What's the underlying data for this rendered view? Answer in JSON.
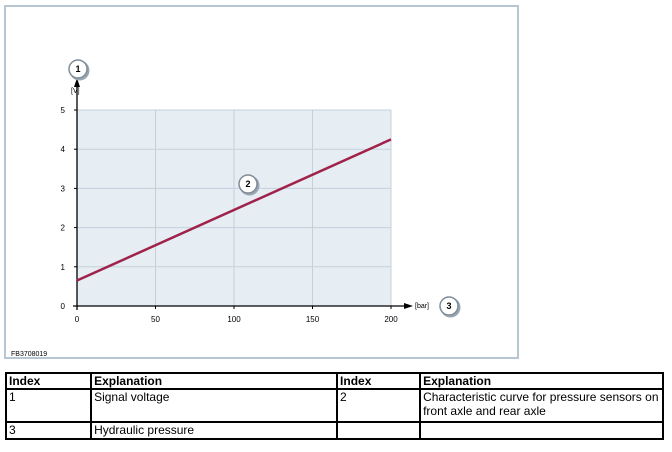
{
  "figure_id": "FB3708019",
  "chart_data": {
    "type": "line",
    "title": "",
    "xlabel": "[bar]",
    "ylabel": "[V]",
    "xlim": [
      0,
      200
    ],
    "ylim": [
      0,
      5
    ],
    "x_ticks": [
      "0",
      "50",
      "100",
      "150",
      "200"
    ],
    "y_ticks": [
      "0",
      "1",
      "2",
      "3",
      "4",
      "5"
    ],
    "grid": true,
    "series": [
      {
        "x": [
          0,
          200
        ],
        "y": [
          0.65,
          4.25
        ],
        "color": "#a0224b"
      }
    ],
    "callouts": {
      "y_axis": "1",
      "curve": "2",
      "x_axis": "3"
    }
  },
  "legend_table": {
    "headers": [
      "Index",
      "Explanation",
      "Index",
      "Explanation"
    ],
    "rows": [
      [
        "1",
        "Signal voltage",
        "2",
        "Characteristic curve for pressure sensors on front axle and rear axle"
      ],
      [
        "3",
        "Hydraulic pressure",
        "",
        ""
      ]
    ]
  },
  "colors": {
    "plot_background": "#e6edf3",
    "grid": "#c4d1dd",
    "frame": "#b7c6d3",
    "curve": "#a0224b"
  }
}
